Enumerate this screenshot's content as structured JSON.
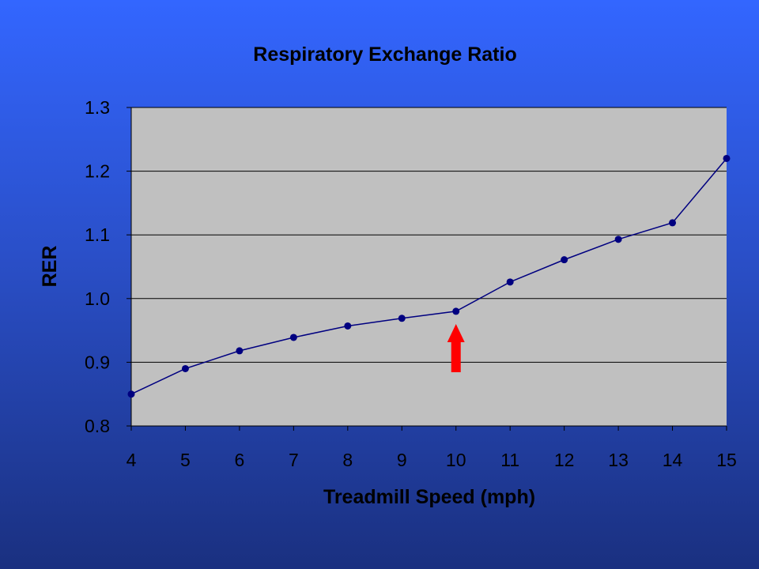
{
  "chart_data": {
    "type": "line",
    "title": "Respiratory Exchange Ratio",
    "xlabel": "Treadmill Speed (mph)",
    "ylabel": "RER",
    "x": [
      4,
      5,
      6,
      7,
      8,
      9,
      10,
      11,
      12,
      13,
      14,
      15
    ],
    "y": [
      0.85,
      0.89,
      0.918,
      0.939,
      0.957,
      0.969,
      0.98,
      1.026,
      1.061,
      1.093,
      1.119,
      1.22
    ],
    "xlim": [
      4,
      15
    ],
    "ylim": [
      0.8,
      1.3
    ],
    "x_ticks": [
      "4",
      "5",
      "6",
      "7",
      "8",
      "9",
      "10",
      "11",
      "12",
      "13",
      "14",
      "15"
    ],
    "y_ticks": [
      "0.8",
      "0.9",
      "1.0",
      "1.1",
      "1.2",
      "1.3"
    ],
    "y_tick_values": [
      0.8,
      0.9,
      1.0,
      1.1,
      1.2,
      1.3
    ],
    "grid": "horizontal",
    "annotation": {
      "type": "arrow",
      "x": 10,
      "points_to": "up"
    },
    "colors": {
      "line": "#000080",
      "marker": "#000080",
      "plot_background": "#c0c0c0",
      "arrow": "#ff0000"
    }
  }
}
